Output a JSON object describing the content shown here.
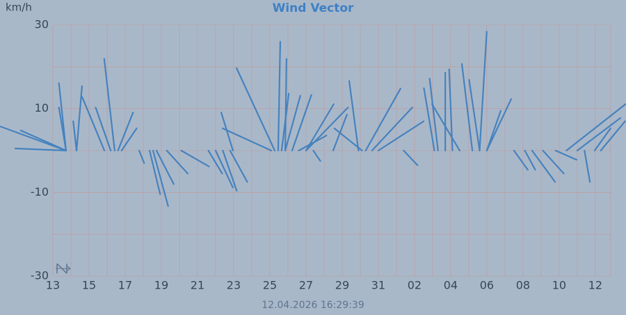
{
  "chart_data": {
    "type": "vector",
    "title": "Wind Vector",
    "y_unit": "km/h",
    "timestamp": "12.04.2026 16:29:39",
    "xlim": [
      0,
      30.85
    ],
    "ylim": [
      -30,
      30
    ],
    "yticks": [
      -30,
      -10,
      10,
      30
    ],
    "ygrid": [
      -30,
      -20,
      -10,
      0,
      10,
      20,
      30
    ],
    "xticks": [
      {
        "value": 0,
        "label": "13"
      },
      {
        "value": 2,
        "label": "15"
      },
      {
        "value": 4,
        "label": "17"
      },
      {
        "value": 6,
        "label": "19"
      },
      {
        "value": 8,
        "label": "21"
      },
      {
        "value": 10,
        "label": "23"
      },
      {
        "value": 12,
        "label": "25"
      },
      {
        "value": 14,
        "label": "27"
      },
      {
        "value": 16,
        "label": "29"
      },
      {
        "value": 18,
        "label": "31"
      },
      {
        "value": 20,
        "label": "02"
      },
      {
        "value": 22,
        "label": "04"
      },
      {
        "value": 24,
        "label": "06"
      },
      {
        "value": 26,
        "label": "08"
      },
      {
        "value": 28,
        "label": "10"
      },
      {
        "value": 30,
        "label": "12"
      }
    ],
    "xgrid": [
      0,
      1,
      2,
      3,
      4,
      5,
      6,
      7,
      8,
      9,
      10,
      11,
      12,
      13,
      14,
      15,
      16,
      17,
      18,
      19,
      20,
      21,
      22,
      23,
      24,
      25,
      26,
      27,
      28,
      29,
      30
    ],
    "grid": true,
    "series": [
      {
        "color": "#4682be",
        "x": [
          0.73,
          0.73,
          0.73,
          0.73,
          1.31,
          1.31,
          2.85,
          3.42,
          3.6,
          3.8,
          3.2,
          4.77,
          5.35,
          5.54,
          5.73,
          6.3,
          7.1,
          8.6,
          9.0,
          9.4,
          9.8,
          9.96,
          12.08,
          12.27,
          12.46,
          12.85,
          12.65,
          12.85,
          13.23,
          13.6,
          14.0,
          14.0,
          14.4,
          15.5,
          16.9,
          17.1,
          17.3,
          17.65,
          18.0,
          19.4,
          21.1,
          21.3,
          21.7,
          22.1,
          22.5,
          23.2,
          23.6,
          23.6,
          24.0,
          24.0,
          25.5,
          26.1,
          26.5,
          27.1,
          27.8,
          28.4,
          29.0,
          29.4,
          29.96,
          30.3,
          0.73
        ],
        "u": [
          -15.8,
          -10.8,
          -1.7,
          -1.7,
          1.3,
          -0.8,
          -5.3,
          -2.5,
          3.6,
          3.6,
          -3.6,
          1.2,
          2.5,
          3.6,
          4.1,
          5.0,
          6.6,
          3.3,
          4.1,
          3.3,
          4.1,
          -2.8,
          -11.6,
          -9.1,
          0.5,
          0.3,
          1.7,
          3.6,
          4.6,
          6.6,
          6.6,
          10.0,
          1.7,
          3.3,
          -2.2,
          -6.6,
          8.3,
          9.6,
          10.8,
          3.3,
          -2.5,
          -2.0,
          0.0,
          -0.8,
          -6.6,
          -2.5,
          -2.5,
          1.7,
          5.8,
          3.3,
          3.3,
          2.5,
          5.5,
          5.0,
          5.0,
          14.1,
          10.3,
          1.3,
          3.8,
          5.8,
          -12.1
        ],
        "v": [
          5.8,
          4.8,
          16.1,
          10.3,
          15.4,
          7.0,
          12.8,
          21.9,
          9.1,
          5.3,
          10.3,
          -3.0,
          -10.4,
          -13.3,
          -8.0,
          -5.5,
          -3.8,
          -5.5,
          -8.8,
          -9.6,
          -7.5,
          9.1,
          5.3,
          19.7,
          26.0,
          21.9,
          13.6,
          13.1,
          13.3,
          3.6,
          11.1,
          10.3,
          -2.5,
          8.6,
          16.6,
          5.3,
          14.8,
          10.3,
          7.0,
          -3.5,
          14.9,
          17.2,
          18.6,
          19.4,
          11.1,
          20.7,
          16.9,
          28.4,
          12.3,
          9.5,
          -4.6,
          -4.6,
          -7.5,
          -5.5,
          -2.2,
          11.1,
          7.8,
          -7.5,
          5.3,
          7.0,
          0.5
        ]
      }
    ]
  }
}
